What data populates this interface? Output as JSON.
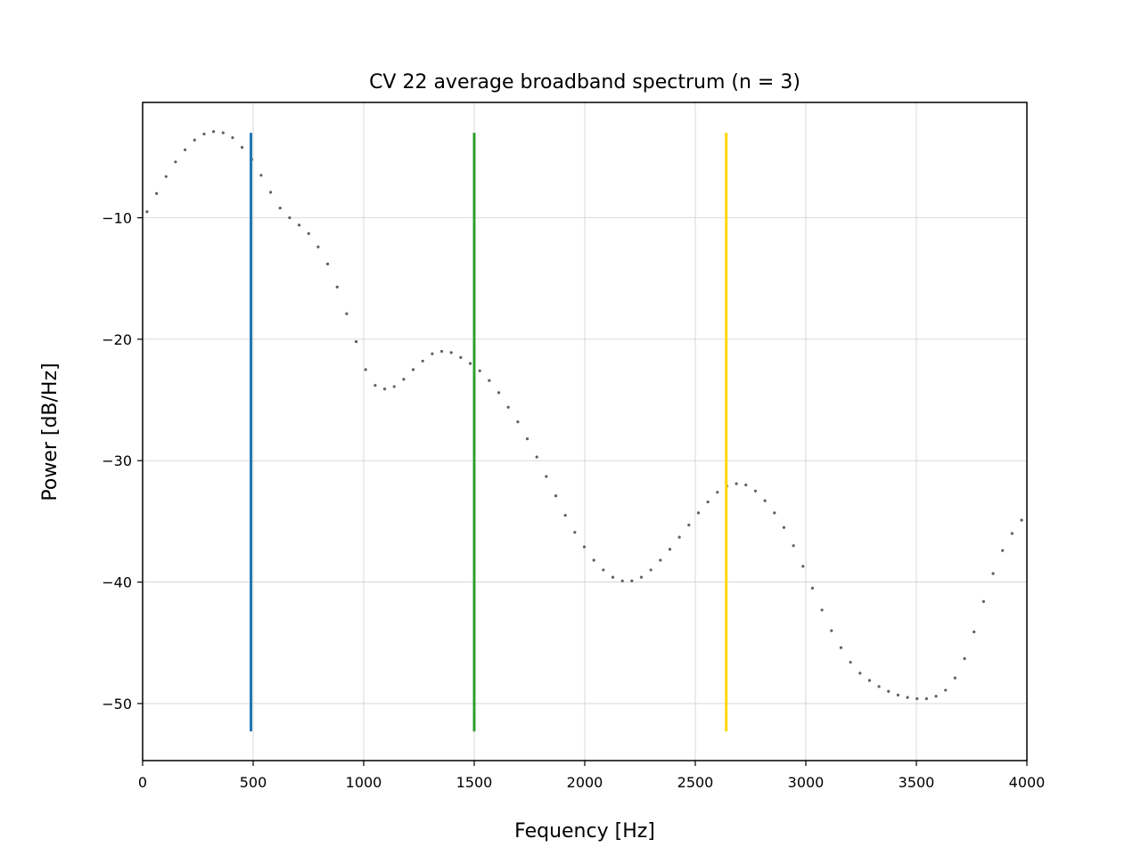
{
  "chart_data": {
    "type": "line",
    "title": "CV 22 average broadband spectrum (n = 3)",
    "xlabel": "Fequency [Hz]",
    "ylabel": "Power [dB/Hz]",
    "xlim": [
      0,
      4000
    ],
    "ylim": [
      -54.7,
      -0.5
    ],
    "xticks": [
      0,
      500,
      1000,
      1500,
      2000,
      2500,
      3000,
      3500,
      4000
    ],
    "xtick_labels": [
      "0",
      "500",
      "1000",
      "1500",
      "2000",
      "2500",
      "3000",
      "3500",
      "4000"
    ],
    "yticks": [
      -10,
      -20,
      -30,
      -40,
      -50
    ],
    "ytick_labels": [
      "−10",
      "−20",
      "−30",
      "−40",
      "−50"
    ],
    "grid": true,
    "series": [
      {
        "style": "dotted",
        "color": "#606060",
        "x": [
          20,
          63,
          106,
          149,
          192,
          235,
          278,
          321,
          364,
          407,
          450,
          493,
          536,
          579,
          622,
          665,
          708,
          751,
          794,
          837,
          880,
          923,
          966,
          1009,
          1052,
          1095,
          1138,
          1181,
          1224,
          1267,
          1310,
          1353,
          1396,
          1439,
          1482,
          1525,
          1568,
          1611,
          1654,
          1697,
          1740,
          1783,
          1826,
          1869,
          1912,
          1955,
          1998,
          2041,
          2084,
          2127,
          2170,
          2213,
          2256,
          2299,
          2342,
          2385,
          2428,
          2471,
          2514,
          2557,
          2600,
          2643,
          2686,
          2729,
          2772,
          2815,
          2858,
          2901,
          2944,
          2987,
          3030,
          3073,
          3116,
          3159,
          3202,
          3245,
          3288,
          3331,
          3374,
          3417,
          3460,
          3503,
          3546,
          3589,
          3632,
          3675,
          3718,
          3761,
          3804,
          3847,
          3890,
          3933,
          3976
        ],
        "y": [
          -9.5,
          -8.0,
          -6.6,
          -5.4,
          -4.4,
          -3.6,
          -3.1,
          -2.9,
          -3.0,
          -3.4,
          -4.2,
          -5.2,
          -6.5,
          -7.9,
          -9.2,
          -10.0,
          -10.6,
          -11.3,
          -12.4,
          -13.8,
          -15.7,
          -17.9,
          -20.2,
          -22.5,
          -23.8,
          -24.1,
          -23.9,
          -23.3,
          -22.5,
          -21.8,
          -21.2,
          -21.0,
          -21.1,
          -21.5,
          -22.0,
          -22.6,
          -23.4,
          -24.4,
          -25.6,
          -26.8,
          -28.2,
          -29.7,
          -31.3,
          -32.9,
          -34.5,
          -35.9,
          -37.1,
          -38.2,
          -39.0,
          -39.6,
          -39.9,
          -39.9,
          -39.6,
          -39.0,
          -38.2,
          -37.3,
          -36.3,
          -35.3,
          -34.3,
          -33.4,
          -32.6,
          -32.1,
          -31.9,
          -32.0,
          -32.5,
          -33.3,
          -34.3,
          -35.5,
          -37.0,
          -38.7,
          -40.5,
          -42.3,
          -44.0,
          -45.4,
          -46.6,
          -47.5,
          -48.1,
          -48.6,
          -49.0,
          -49.3,
          -49.5,
          -49.6,
          -49.6,
          -49.4,
          -48.9,
          -47.9,
          -46.3,
          -44.1,
          -41.6,
          -39.3,
          -37.4,
          -36.0,
          -34.9
        ]
      }
    ],
    "vlines": [
      {
        "x": 490,
        "color": "#1f77b4",
        "y_top": -3.0,
        "y_bottom": -52.3
      },
      {
        "x": 1500,
        "color": "#2ca02c",
        "y_top": -3.0,
        "y_bottom": -52.3
      },
      {
        "x": 2640,
        "color": "#ffd700",
        "y_top": -3.0,
        "y_bottom": -52.3
      }
    ]
  }
}
